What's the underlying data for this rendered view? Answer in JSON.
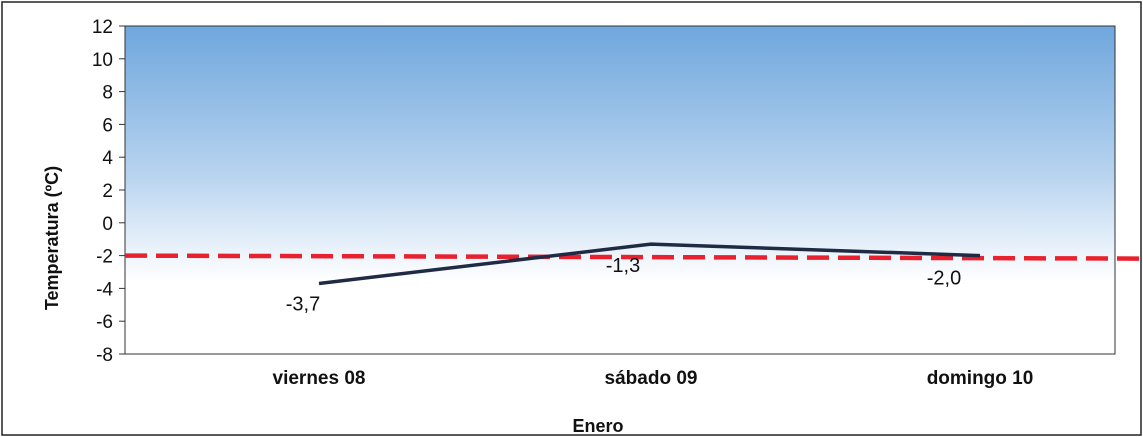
{
  "chart_data": {
    "type": "line",
    "title": "",
    "xlabel": "Enero",
    "ylabel": "Temperatura (ºC)",
    "categories": [
      "viernes 08",
      "sábado 09",
      "domingo 10"
    ],
    "series": [
      {
        "values": [
          -3.7,
          -1.3,
          -2.0
        ],
        "labels": [
          "-3,7",
          "-1,3",
          "-2,0"
        ],
        "color": "#1f2a44"
      }
    ],
    "reference_line": {
      "value": -2,
      "style": "dashed",
      "color": "#e8212e"
    },
    "ylim": [
      -8,
      12
    ],
    "yticks": [
      12,
      10,
      8,
      6,
      4,
      2,
      0,
      -2,
      -4,
      -6,
      -8
    ],
    "background": {
      "gradient_top": "#6fa7dd",
      "gradient_bottom": "#ffffff"
    },
    "grid": false,
    "legend": "none"
  }
}
